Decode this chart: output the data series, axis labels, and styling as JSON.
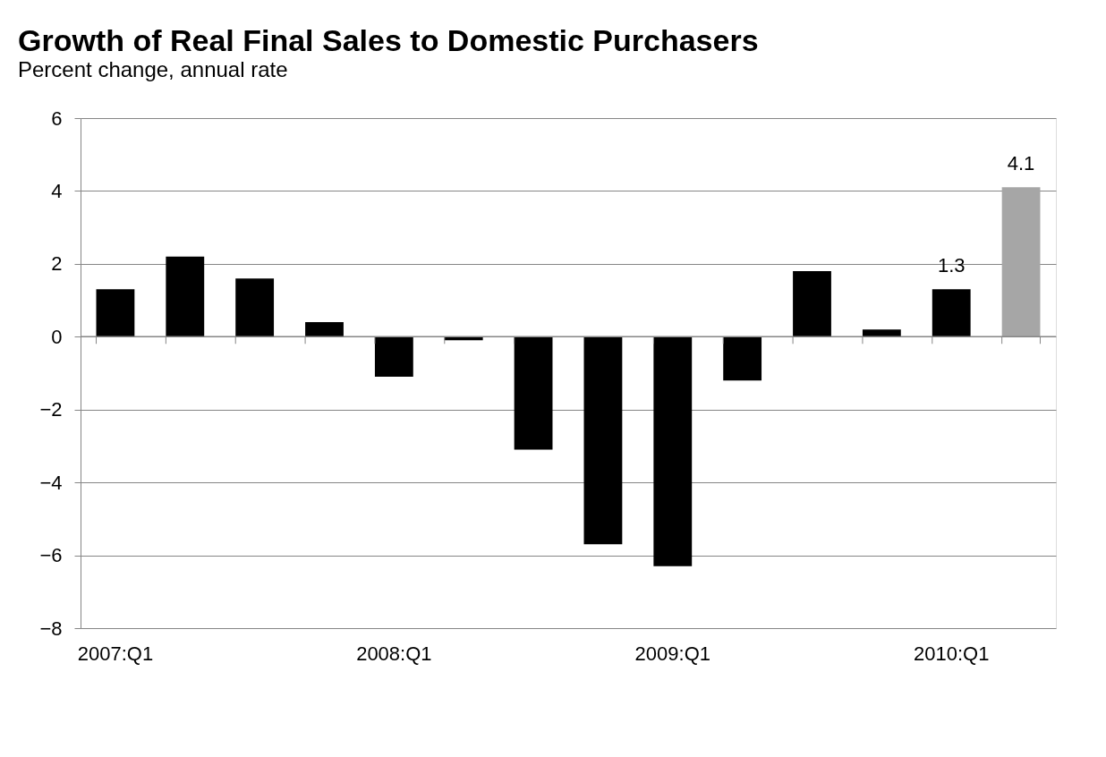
{
  "chart_data": {
    "type": "bar",
    "title": "Growth of Real Final Sales to Domestic Purchasers",
    "subtitle": "Percent change, annual rate",
    "categories": [
      "2007:Q1",
      null,
      null,
      null,
      "2008:Q1",
      null,
      null,
      null,
      "2009:Q1",
      null,
      null,
      null,
      "2010:Q1",
      null
    ],
    "values": [
      1.3,
      2.2,
      1.6,
      0.4,
      -1.1,
      -0.1,
      -3.1,
      -5.7,
      -6.3,
      -1.2,
      1.8,
      0.2,
      1.3,
      4.1
    ],
    "colors": [
      "#000000",
      "#000000",
      "#000000",
      "#000000",
      "#000000",
      "#000000",
      "#000000",
      "#000000",
      "#000000",
      "#000000",
      "#000000",
      "#000000",
      "#000000",
      "#a6a6a6"
    ],
    "value_labels": [
      null,
      null,
      null,
      null,
      null,
      null,
      null,
      null,
      null,
      null,
      null,
      null,
      "1.3",
      "4.1"
    ],
    "ylim": [
      -8,
      6
    ],
    "yticks": [
      -8,
      -6,
      -4,
      -2,
      0,
      2,
      4,
      6
    ],
    "grid": "y"
  }
}
